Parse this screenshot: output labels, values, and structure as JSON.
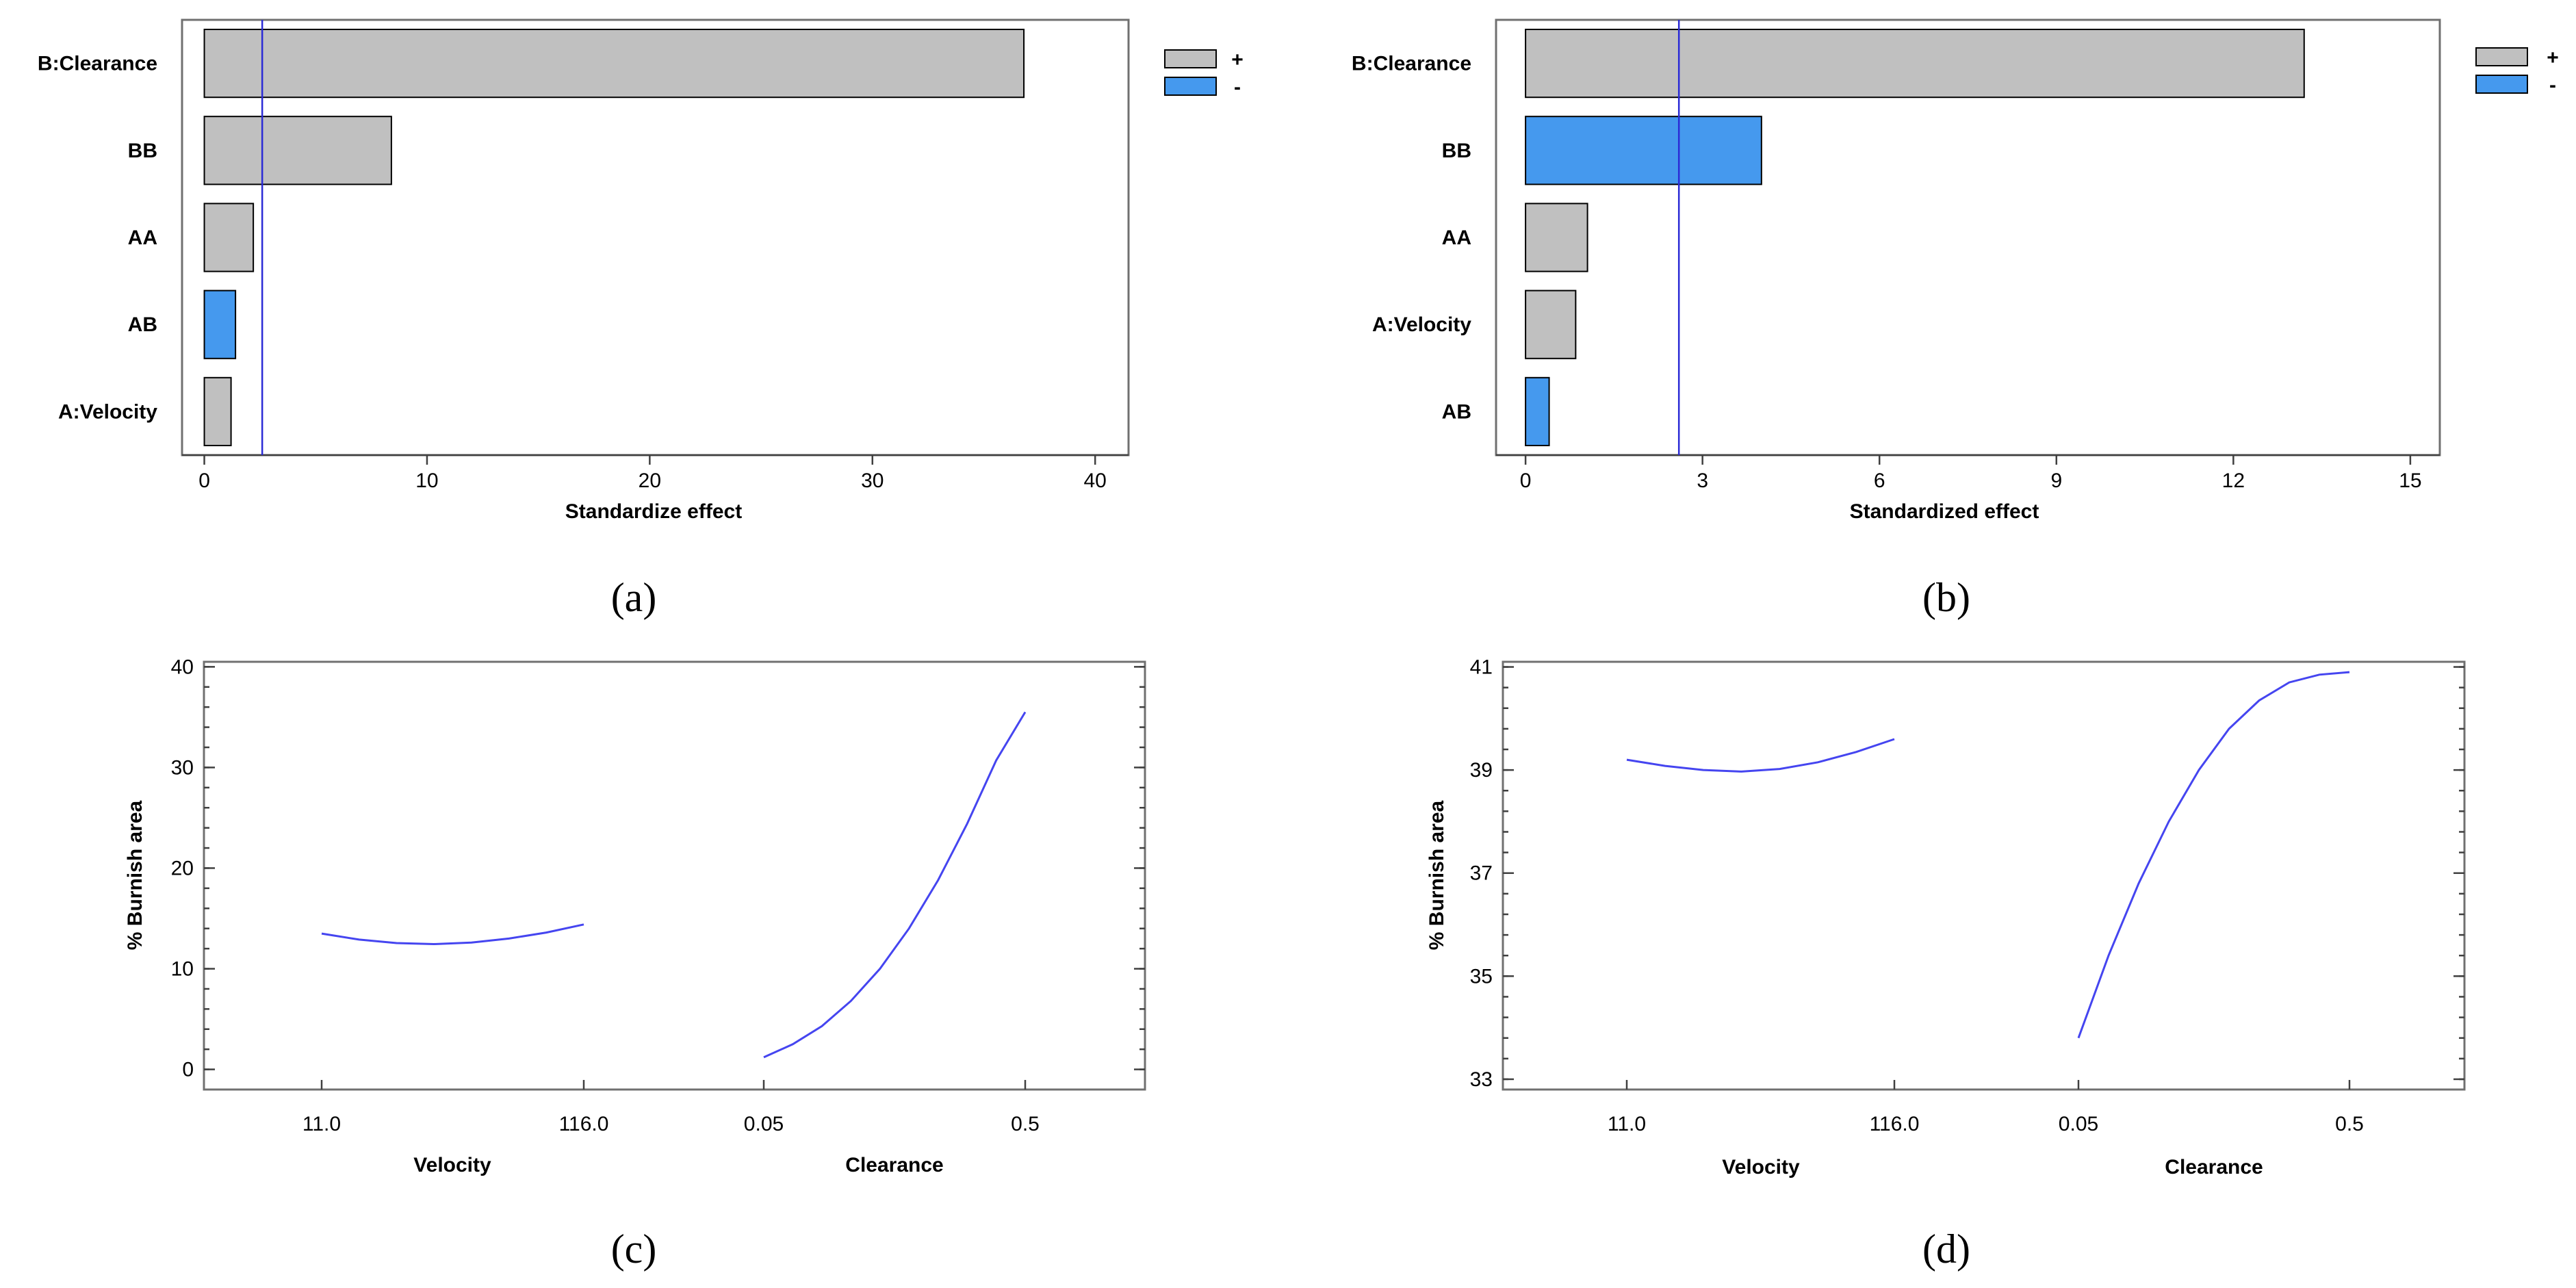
{
  "chart_data": [
    {
      "panel": "(a)",
      "type": "bar",
      "orientation": "horizontal",
      "title": "",
      "categories": [
        "B:Clearance",
        "BB",
        "AA",
        "AB",
        "A:Velocity"
      ],
      "values": [
        36.8,
        8.4,
        2.2,
        1.4,
        1.2
      ],
      "signs": [
        "+",
        "+",
        "+",
        "-",
        "+"
      ],
      "xlabel": "Standardize effect",
      "xlim": [
        -1,
        41.5
      ],
      "xticks": [
        0,
        10,
        20,
        30,
        40
      ],
      "reference_line": 2.6,
      "legend": [
        {
          "label": "+",
          "color": "#c0c0c0"
        },
        {
          "label": "-",
          "color": "#4599ee"
        }
      ]
    },
    {
      "panel": "(b)",
      "type": "bar",
      "orientation": "horizontal",
      "title": "",
      "categories": [
        "B:Clearance",
        "BB",
        "AA",
        "A:Velocity",
        "AB"
      ],
      "values": [
        13.2,
        4.0,
        1.05,
        0.85,
        0.4
      ],
      "signs": [
        "+",
        "-",
        "+",
        "+",
        "-"
      ],
      "xlabel": "Standardized effect",
      "xlim": [
        -0.5,
        15.5
      ],
      "xticks": [
        0,
        3,
        6,
        9,
        12,
        15
      ],
      "reference_line": 2.6,
      "legend": [
        {
          "label": "+",
          "color": "#c0c0c0"
        },
        {
          "label": "-",
          "color": "#4599ee"
        }
      ]
    },
    {
      "panel": "(c)",
      "type": "line",
      "title": "",
      "ylabel": "% Burnish area",
      "ylim": [
        -2,
        40.5
      ],
      "yticks": [
        0,
        10,
        20,
        30,
        40
      ],
      "groups": [
        {
          "name": "Velocity",
          "low": "11.0",
          "high": "116.0",
          "y": [
            13.5,
            12.9,
            12.55,
            12.45,
            12.6,
            13.0,
            13.6,
            14.4
          ]
        },
        {
          "name": "Clearance",
          "low": "0.05",
          "high": "0.5",
          "y": [
            1.2,
            2.5,
            4.3,
            6.8,
            10.0,
            14.0,
            18.8,
            24.4,
            30.7,
            35.5
          ]
        }
      ]
    },
    {
      "panel": "(d)",
      "type": "line",
      "title": "",
      "ylabel": "% Burnish area",
      "ylim": [
        32.8,
        41.1
      ],
      "yticks": [
        33,
        35,
        37,
        39,
        41
      ],
      "groups": [
        {
          "name": "Velocity",
          "low": "11.0",
          "high": "116.0",
          "y": [
            39.2,
            39.08,
            39.0,
            38.97,
            39.02,
            39.15,
            39.35,
            39.6
          ]
        },
        {
          "name": "Clearance",
          "low": "0.05",
          "high": "0.5",
          "y": [
            33.8,
            35.4,
            36.8,
            38.0,
            39.0,
            39.8,
            40.35,
            40.7,
            40.85,
            40.9
          ]
        }
      ]
    }
  ]
}
